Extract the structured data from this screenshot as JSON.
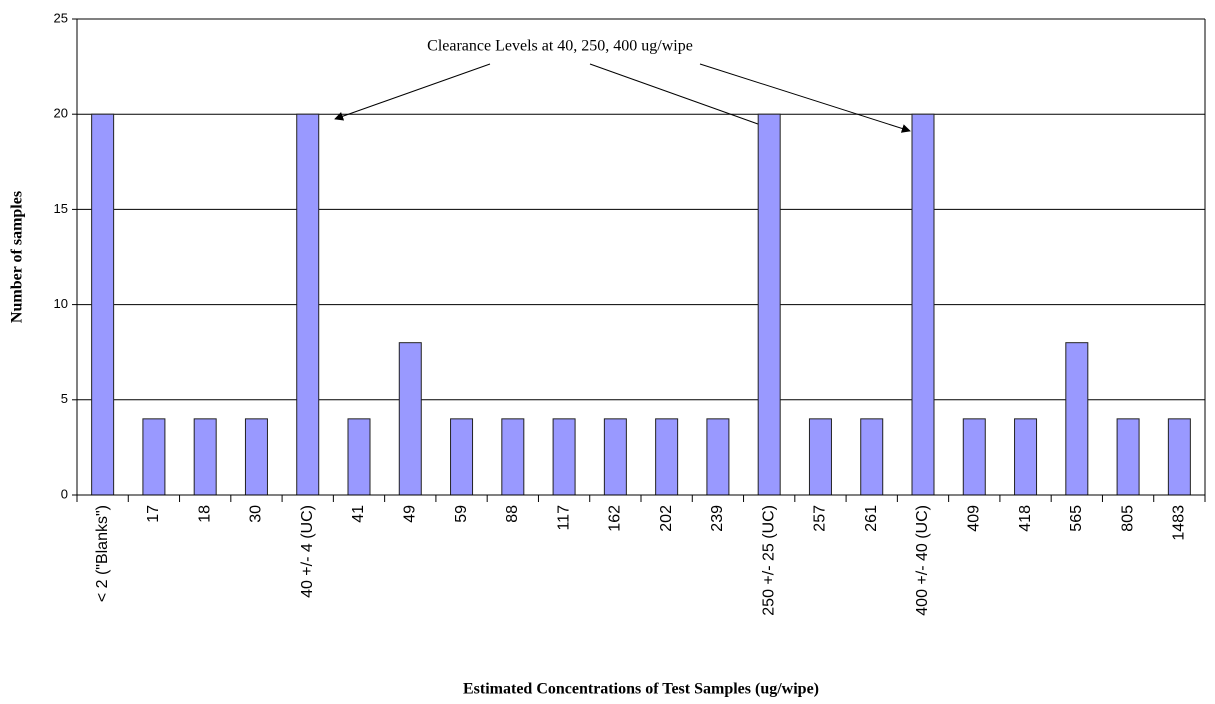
{
  "chart_data": {
    "type": "bar",
    "annotation": "Clearance Levels at 40, 250, 400 ug/wipe",
    "x_label": "Estimated Concentrations of Test Samples (ug/wipe)",
    "y_label": "Number of samples",
    "categories": [
      "< 2 (\"Blanks\")",
      "17",
      "18",
      "30",
      "40 +/- 4 (UC)",
      "41",
      "49",
      "59",
      "88",
      "117",
      "162",
      "202",
      "239",
      "250 +/- 25 (UC)",
      "257",
      "261",
      "400 +/- 40 (UC)",
      "409",
      "418",
      "565",
      "805",
      "1483"
    ],
    "values": [
      20,
      4,
      4,
      4,
      20,
      4,
      8,
      4,
      4,
      4,
      4,
      4,
      4,
      20,
      4,
      4,
      20,
      4,
      4,
      8,
      4,
      4
    ],
    "color": "#9999ff",
    "ylim": [
      0,
      25
    ],
    "yticks": [
      0,
      5,
      10,
      15,
      20,
      25
    ],
    "grid": true
  }
}
